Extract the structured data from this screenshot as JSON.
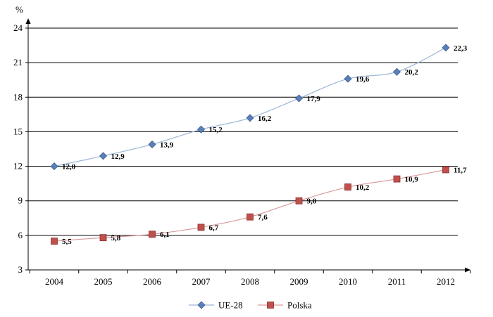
{
  "chart_data": {
    "type": "line",
    "ylabel": "%",
    "ylim": [
      3,
      24
    ],
    "yticks": [
      3,
      6,
      9,
      12,
      15,
      18,
      21,
      24
    ],
    "x": [
      "2004",
      "2005",
      "2006",
      "2007",
      "2008",
      "2009",
      "2010",
      "2011",
      "2012"
    ],
    "grid": true,
    "legend_position": "bottom",
    "series": [
      {
        "name": "UE-28",
        "values": [
          12.0,
          12.9,
          13.9,
          15.2,
          16.2,
          17.9,
          19.6,
          20.2,
          22.3
        ],
        "labels": [
          "12,0",
          "12,9",
          "13,9",
          "15,2",
          "16,2",
          "17,9",
          "19,6",
          "20,2",
          "22,3"
        ],
        "color": "#9bb5d6",
        "marker_color": "#5b7fb8",
        "marker": "diamond"
      },
      {
        "name": "Polska",
        "values": [
          5.5,
          5.8,
          6.1,
          6.7,
          7.6,
          9.0,
          10.2,
          10.9,
          11.7
        ],
        "labels": [
          "5,5",
          "5,8",
          "6,1",
          "6,7",
          "7,6",
          "9,0",
          "10,2",
          "10,9",
          "11,7"
        ],
        "color": "#d99a9a",
        "marker_color": "#c0504d",
        "marker": "square"
      }
    ]
  }
}
